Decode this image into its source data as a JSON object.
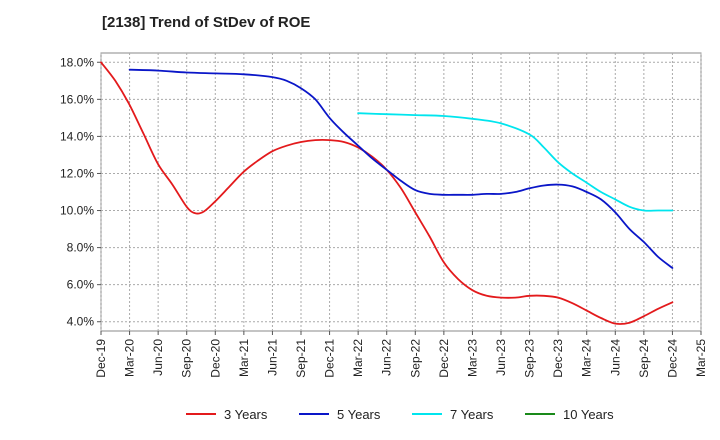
{
  "chart_data": {
    "type": "line",
    "title": "[2138]  Trend of StDev of ROE",
    "xlabel": "",
    "ylabel": "",
    "x_ticks": [
      "Dec-19",
      "Mar-20",
      "Jun-20",
      "Sep-20",
      "Dec-20",
      "Mar-21",
      "Jun-21",
      "Sep-21",
      "Dec-21",
      "Mar-22",
      "Jun-22",
      "Sep-22",
      "Dec-22",
      "Mar-23",
      "Jun-23",
      "Sep-23",
      "Dec-23",
      "Mar-24",
      "Jun-24",
      "Sep-24",
      "Dec-24",
      "Mar-25"
    ],
    "y_ticks": [
      "4.0%",
      "6.0%",
      "8.0%",
      "10.0%",
      "12.0%",
      "14.0%",
      "16.0%",
      "18.0%"
    ],
    "y_tick_values": [
      4,
      6,
      8,
      10,
      12,
      14,
      16,
      18
    ],
    "ylim": [
      3.5,
      18.5
    ],
    "grid": true,
    "legend_position": "bottom",
    "series": [
      {
        "name": "3 Years",
        "color": "#e31a1c",
        "x_index": [
          0,
          0.5,
          1,
          1.5,
          2,
          2.5,
          3,
          3.3,
          3.6,
          4,
          4.5,
          5,
          5.5,
          6,
          6.5,
          7,
          7.5,
          8,
          8.5,
          9,
          9.5,
          10,
          10.5,
          11,
          11.5,
          12,
          12.5,
          13,
          13.5,
          14,
          14.5,
          15,
          15.5,
          16,
          16.5,
          17,
          17.5,
          18,
          18.5,
          19,
          19.5,
          20
        ],
        "values": [
          18.0,
          17.0,
          15.7,
          14.1,
          12.5,
          11.4,
          10.2,
          9.85,
          9.95,
          10.5,
          11.3,
          12.1,
          12.7,
          13.2,
          13.5,
          13.7,
          13.8,
          13.8,
          13.7,
          13.4,
          12.9,
          12.2,
          11.2,
          9.9,
          8.6,
          7.2,
          6.3,
          5.7,
          5.4,
          5.3,
          5.3,
          5.4,
          5.4,
          5.3,
          5.0,
          4.6,
          4.2,
          3.9,
          3.95,
          4.3,
          4.7,
          5.05
        ]
      },
      {
        "name": "5 Years",
        "color": "#0a16c8",
        "x_index": [
          1,
          2,
          3,
          4,
          5,
          6,
          6.5,
          7,
          7.5,
          8,
          8.5,
          9,
          9.5,
          10,
          10.5,
          11,
          11.5,
          12,
          12.5,
          13,
          13.5,
          14,
          14.5,
          15,
          15.5,
          16,
          16.5,
          17,
          17.5,
          18,
          18.5,
          19,
          19.5,
          20
        ],
        "values": [
          17.6,
          17.55,
          17.45,
          17.4,
          17.35,
          17.2,
          17.0,
          16.6,
          16.0,
          15.0,
          14.2,
          13.5,
          12.8,
          12.2,
          11.6,
          11.1,
          10.9,
          10.85,
          10.85,
          10.85,
          10.9,
          10.9,
          11.0,
          11.2,
          11.35,
          11.4,
          11.3,
          11.0,
          10.6,
          9.9,
          9.0,
          8.3,
          7.5,
          6.9
        ]
      },
      {
        "name": "7 Years",
        "color": "#00e5ee",
        "x_index": [
          9,
          10,
          11,
          12,
          13,
          14,
          15,
          15.5,
          16,
          16.5,
          17,
          17.5,
          18,
          18.5,
          19,
          19.5,
          20
        ],
        "values": [
          15.25,
          15.2,
          15.15,
          15.1,
          14.95,
          14.7,
          14.1,
          13.4,
          12.6,
          12.0,
          11.5,
          11.0,
          10.6,
          10.2,
          10.0,
          10.0,
          10.0
        ]
      },
      {
        "name": "10 Years",
        "color": "#1a8a1a",
        "x_index": [],
        "values": []
      }
    ]
  }
}
